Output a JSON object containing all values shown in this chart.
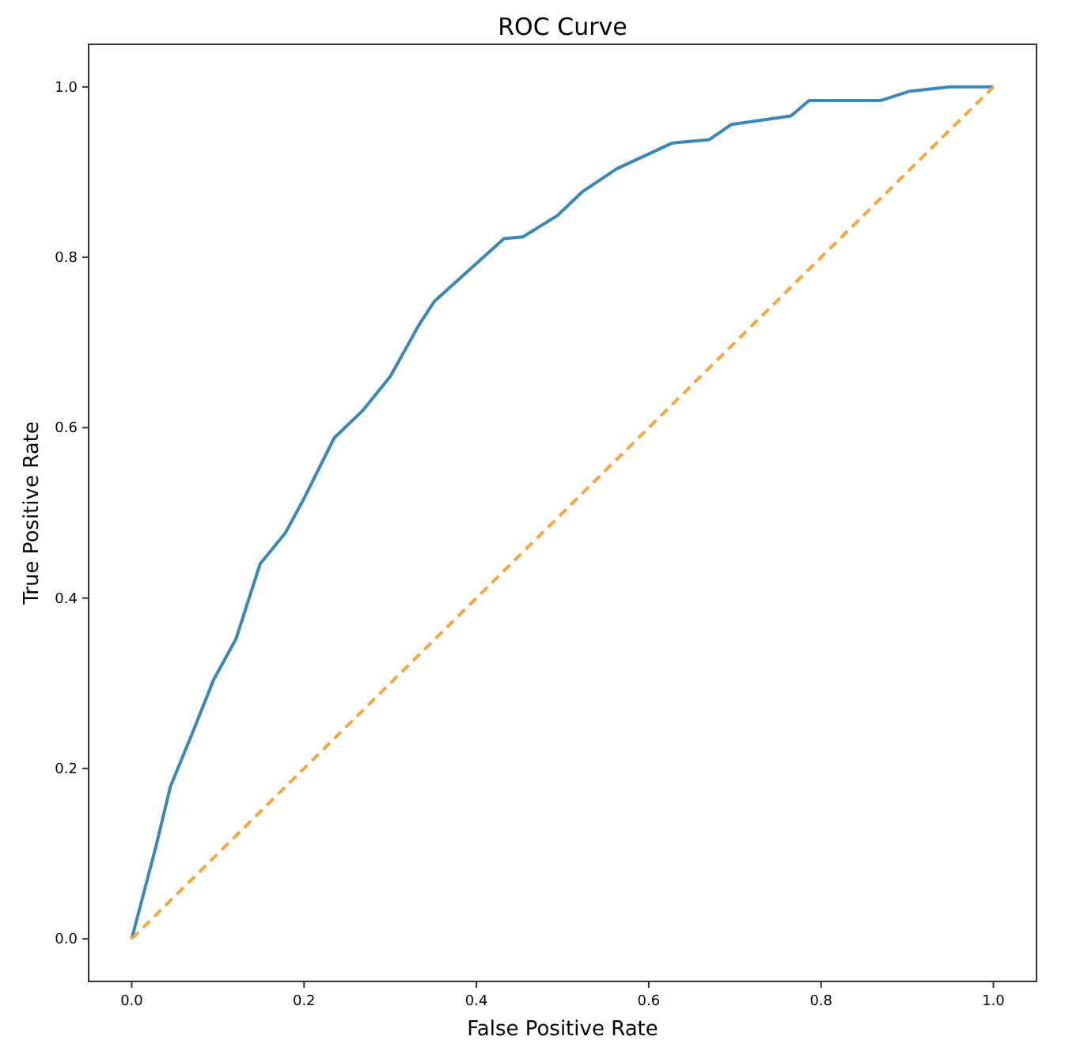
{
  "chart_data": {
    "type": "line",
    "title": "ROC Curve",
    "xlabel": "False Positive Rate",
    "ylabel": "True Positive Rate",
    "xlim": [
      -0.05,
      1.05
    ],
    "ylim": [
      -0.05,
      1.05
    ],
    "xticks": [
      {
        "value": 0,
        "label": "0.0"
      },
      {
        "value": 0.2,
        "label": "0.2"
      },
      {
        "value": 0.4,
        "label": "0.4"
      },
      {
        "value": 0.6,
        "label": "0.6"
      },
      {
        "value": 0.8,
        "label": "0.8"
      },
      {
        "value": 1,
        "label": "1.0"
      }
    ],
    "yticks": [
      {
        "value": 0,
        "label": "0.0"
      },
      {
        "value": 0.2,
        "label": "0.2"
      },
      {
        "value": 0.4,
        "label": "0.4"
      },
      {
        "value": 0.6,
        "label": "0.6"
      },
      {
        "value": 0.8,
        "label": "0.8"
      },
      {
        "value": 1,
        "label": "1.0"
      }
    ],
    "grid": false,
    "series": [
      {
        "color": "#3a87b8",
        "line_style": "solid",
        "x": [
          0,
          0.028,
          0.045,
          0.069,
          0.095,
          0.121,
          0.149,
          0.178,
          0.2,
          0.235,
          0.268,
          0.3,
          0.333,
          0.351,
          0.432,
          0.454,
          0.494,
          0.523,
          0.563,
          0.627,
          0.67,
          0.696,
          0.765,
          0.786,
          0.869,
          0.903,
          0.95,
          1
        ],
        "values": [
          0,
          0.108,
          0.179,
          0.238,
          0.304,
          0.352,
          0.44,
          0.476,
          0.517,
          0.588,
          0.62,
          0.66,
          0.72,
          0.748,
          0.822,
          0.824,
          0.849,
          0.877,
          0.904,
          0.934,
          0.938,
          0.956,
          0.966,
          0.984,
          0.984,
          0.995,
          1,
          1
        ]
      },
      {
        "color": "#f5a742",
        "line_style": "dashed",
        "x": [
          0,
          1
        ],
        "values": [
          0,
          1
        ]
      }
    ]
  }
}
